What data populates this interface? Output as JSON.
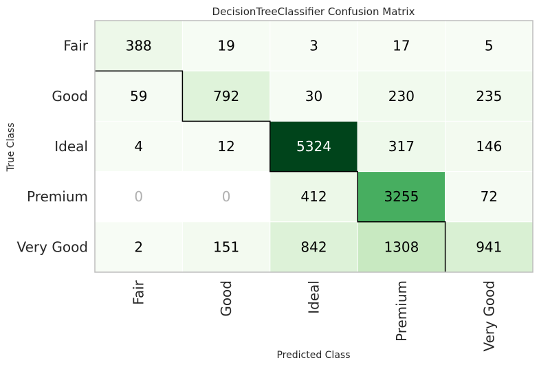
{
  "chart_data": {
    "type": "heatmap",
    "title": "DecisionTreeClassifier Confusion Matrix",
    "xlabel": "Predicted Class",
    "ylabel": "True Class",
    "x_categories": [
      "Fair",
      "Good",
      "Ideal",
      "Premium",
      "Very Good"
    ],
    "y_categories": [
      "Fair",
      "Good",
      "Ideal",
      "Premium",
      "Very Good"
    ],
    "values": [
      [
        388,
        19,
        3,
        17,
        5
      ],
      [
        59,
        792,
        30,
        230,
        235
      ],
      [
        4,
        12,
        5324,
        317,
        146
      ],
      [
        0,
        0,
        412,
        3255,
        72
      ],
      [
        2,
        151,
        842,
        1308,
        941
      ]
    ],
    "colormap": "Greens",
    "zero_cell_color": "#ffffff",
    "zero_text_color": "#b0b0b0",
    "diagonal_outline": true
  }
}
